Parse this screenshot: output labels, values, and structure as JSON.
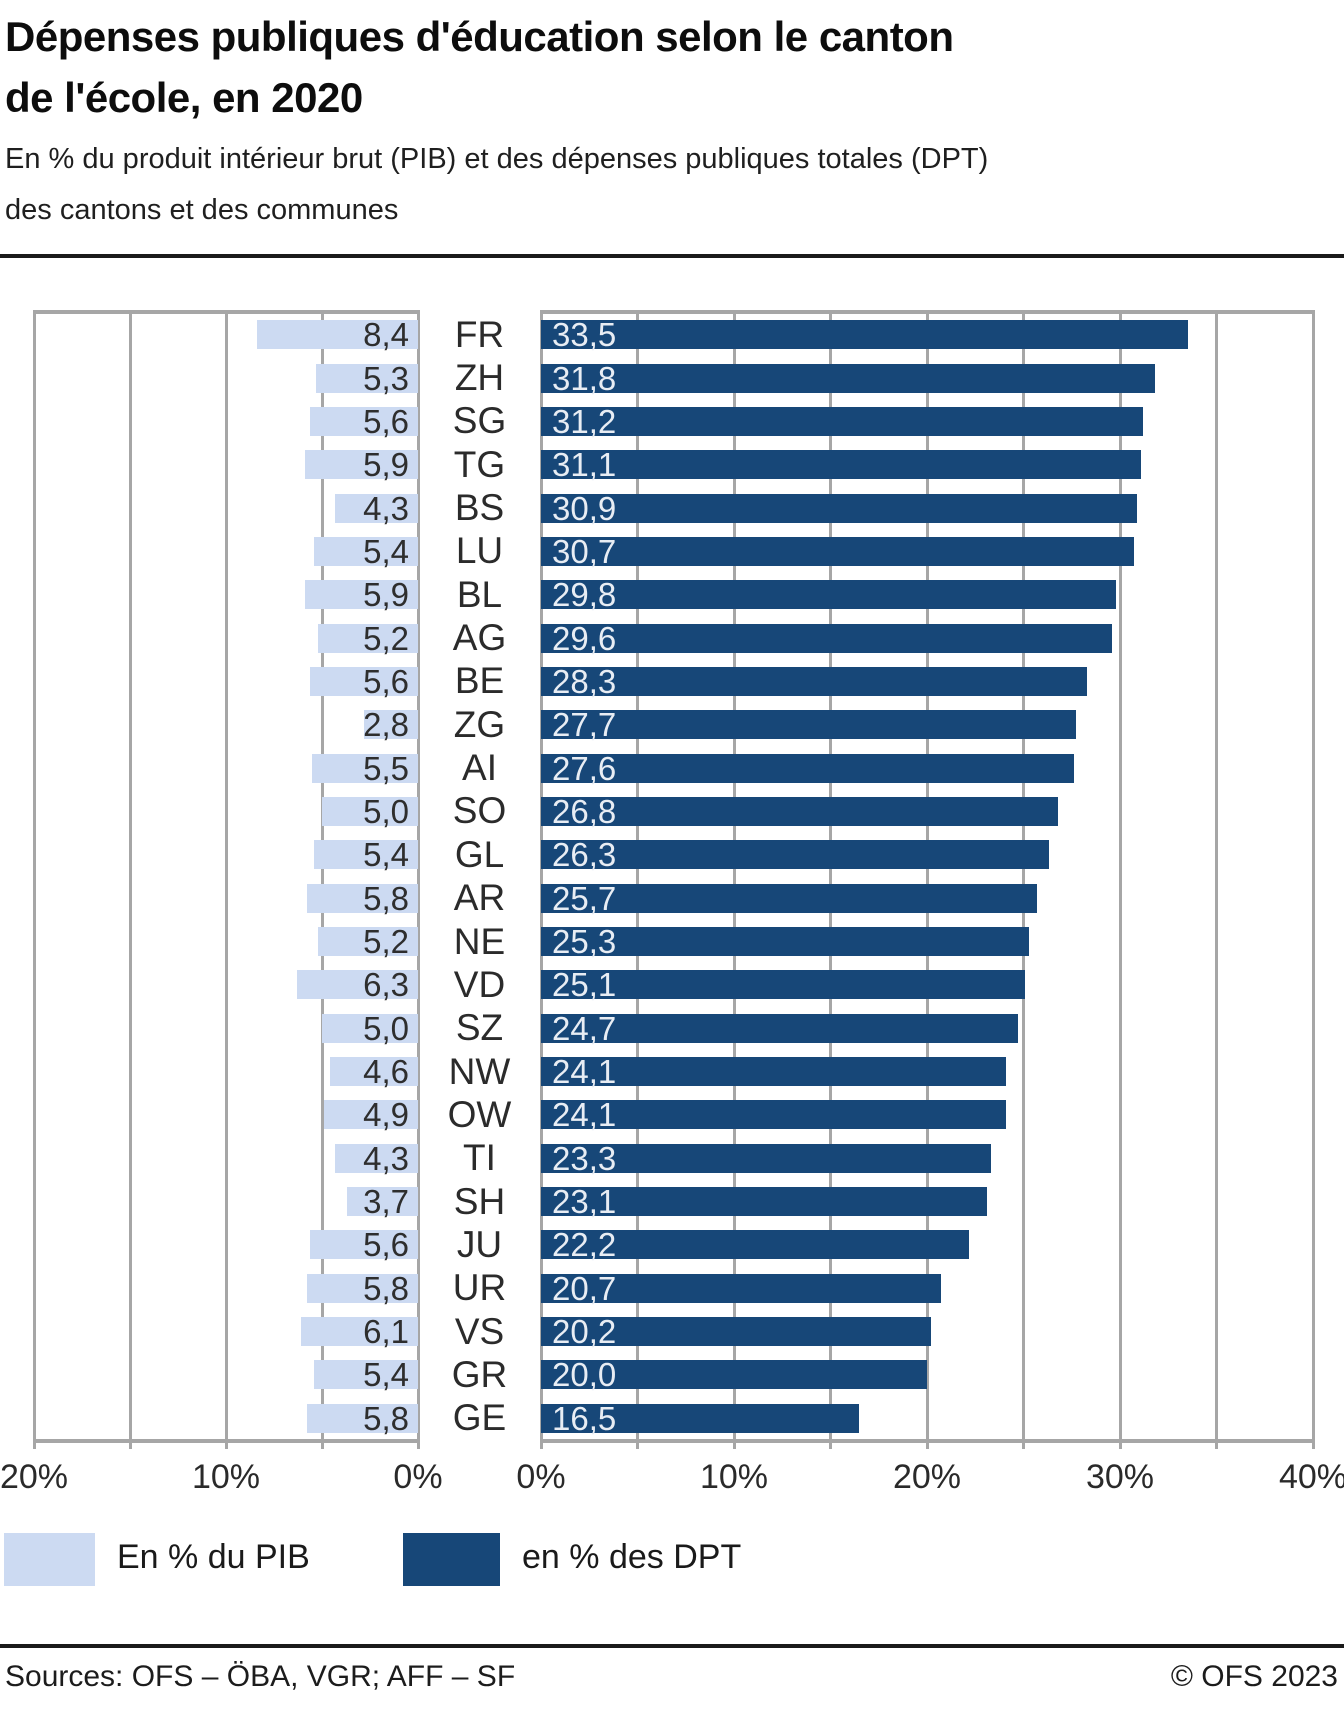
{
  "header": {
    "title_line1": "Dépenses publiques d'éducation selon le canton",
    "title_line2": "de l'école, en 2020",
    "subtitle_line1": "En % du produit intérieur brut (PIB) et des dépenses publiques totales (DPT)",
    "subtitle_line2": "des cantons et des communes"
  },
  "chart_data": {
    "type": "bar",
    "orientation": "horizontal",
    "grid": true,
    "gridline_step_pct": 5,
    "categories": [
      "FR",
      "ZH",
      "SG",
      "TG",
      "BS",
      "LU",
      "BL",
      "AG",
      "BE",
      "ZG",
      "AI",
      "SO",
      "GL",
      "AR",
      "NE",
      "VD",
      "SZ",
      "NW",
      "OW",
      "TI",
      "SH",
      "JU",
      "UR",
      "VS",
      "GR",
      "GE"
    ],
    "series": [
      {
        "name": "En % du PIB",
        "color": "#ccdaf2",
        "label_color": "#2e2e2e",
        "axis_side": "left",
        "axis_range": [
          0,
          20
        ],
        "direction": "right-to-left",
        "values": [
          8.4,
          5.3,
          5.6,
          5.9,
          4.3,
          5.4,
          5.9,
          5.2,
          5.6,
          2.8,
          5.5,
          5.0,
          5.4,
          5.8,
          5.2,
          6.3,
          5.0,
          4.6,
          4.9,
          4.3,
          3.7,
          5.6,
          5.8,
          6.1,
          5.4,
          5.8
        ],
        "labels": [
          "8,4",
          "5,3",
          "5,6",
          "5,9",
          "4,3",
          "5,4",
          "5,9",
          "5,2",
          "5,6",
          "2,8",
          "5,5",
          "5,0",
          "5,4",
          "5,8",
          "5,2",
          "6,3",
          "5,0",
          "4,6",
          "4,9",
          "4,3",
          "3,7",
          "5,6",
          "5,8",
          "6,1",
          "5,4",
          "5,8"
        ]
      },
      {
        "name": "en % des DPT",
        "color": "#174778",
        "label_color": "#e8edf4",
        "axis_side": "right",
        "axis_range": [
          0,
          40
        ],
        "direction": "left-to-right",
        "values": [
          33.5,
          31.8,
          31.2,
          31.1,
          30.9,
          30.7,
          29.8,
          29.6,
          28.3,
          27.7,
          27.6,
          26.8,
          26.3,
          25.7,
          25.3,
          25.1,
          24.7,
          24.1,
          24.1,
          23.3,
          23.1,
          22.2,
          20.7,
          20.2,
          20.0,
          16.5
        ],
        "labels": [
          "33,5",
          "31,8",
          "31,2",
          "31,1",
          "30,9",
          "30,7",
          "29,8",
          "29,6",
          "28,3",
          "27,7",
          "27,6",
          "26,8",
          "26,3",
          "25,7",
          "25,3",
          "25,1",
          "24,7",
          "24,1",
          "24,1",
          "23,3",
          "23,1",
          "22,2",
          "20,7",
          "20,2",
          "20,0",
          "16,5"
        ]
      }
    ],
    "left_axis_ticks": [
      {
        "label": "20%",
        "pct": 20
      },
      {
        "label": "10%",
        "pct": 10
      },
      {
        "label": "0%",
        "pct": 0
      }
    ],
    "right_axis_ticks": [
      {
        "label": "0%",
        "pct": 0
      },
      {
        "label": "10%",
        "pct": 10
      },
      {
        "label": "20%",
        "pct": 20
      },
      {
        "label": "30%",
        "pct": 30
      },
      {
        "label": "40%",
        "pct": 40
      }
    ],
    "gridline_color": "#a6a6a6"
  },
  "legend": [
    {
      "label": "En % du PIB",
      "color": "#ccdaf2"
    },
    {
      "label": "en % des DPT",
      "color": "#174778"
    }
  ],
  "footer": {
    "sources": "Sources: OFS – ÖBA, VGR; AFF – SF",
    "copyright": "© OFS 2023"
  }
}
